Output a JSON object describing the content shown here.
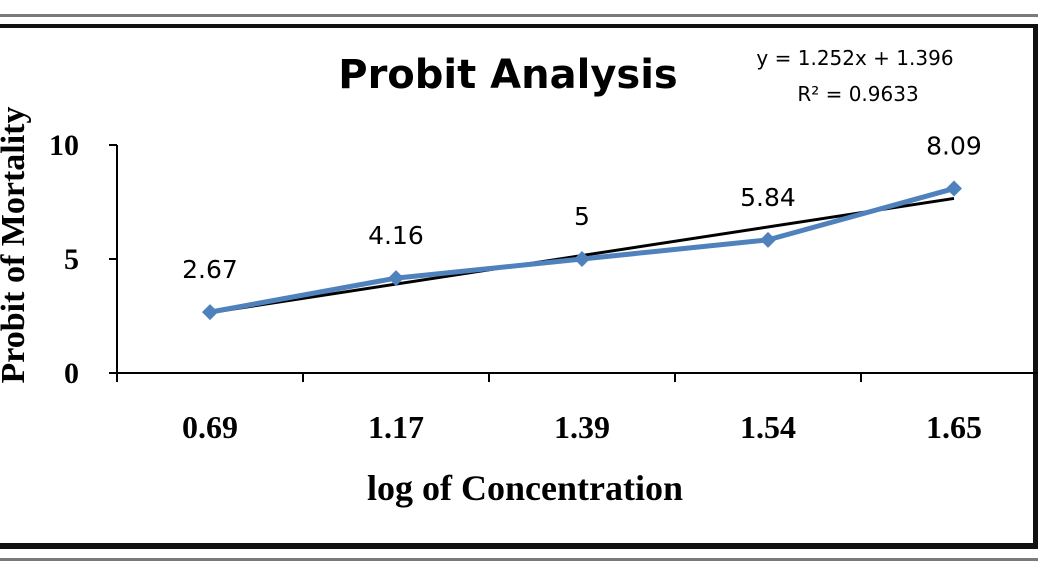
{
  "chart_data": {
    "type": "line",
    "title": "Probit Analysis",
    "xlabel": "log of Concentration",
    "ylabel": "Probit of Mortality",
    "categories": [
      "0.69",
      "1.17",
      "1.39",
      "1.54",
      "1.65"
    ],
    "series": [
      {
        "values": [
          2.67,
          4.16,
          5,
          5.84,
          8.09
        ],
        "color": "#4f81bd",
        "marker": "diamond"
      }
    ],
    "data_labels": [
      "2.67",
      "4.16",
      "5",
      "5.84",
      "8.09"
    ],
    "trendline": {
      "type": "linear",
      "slope": 1.252,
      "intercept": 1.396,
      "color": "#000000",
      "equation": "y = 1.252x + 1.396",
      "r_squared": "R² = 0.9633"
    },
    "yticks": [
      "0",
      "5",
      "10"
    ],
    "ylim": [
      0,
      10
    ],
    "grid": false,
    "legend": "none"
  }
}
